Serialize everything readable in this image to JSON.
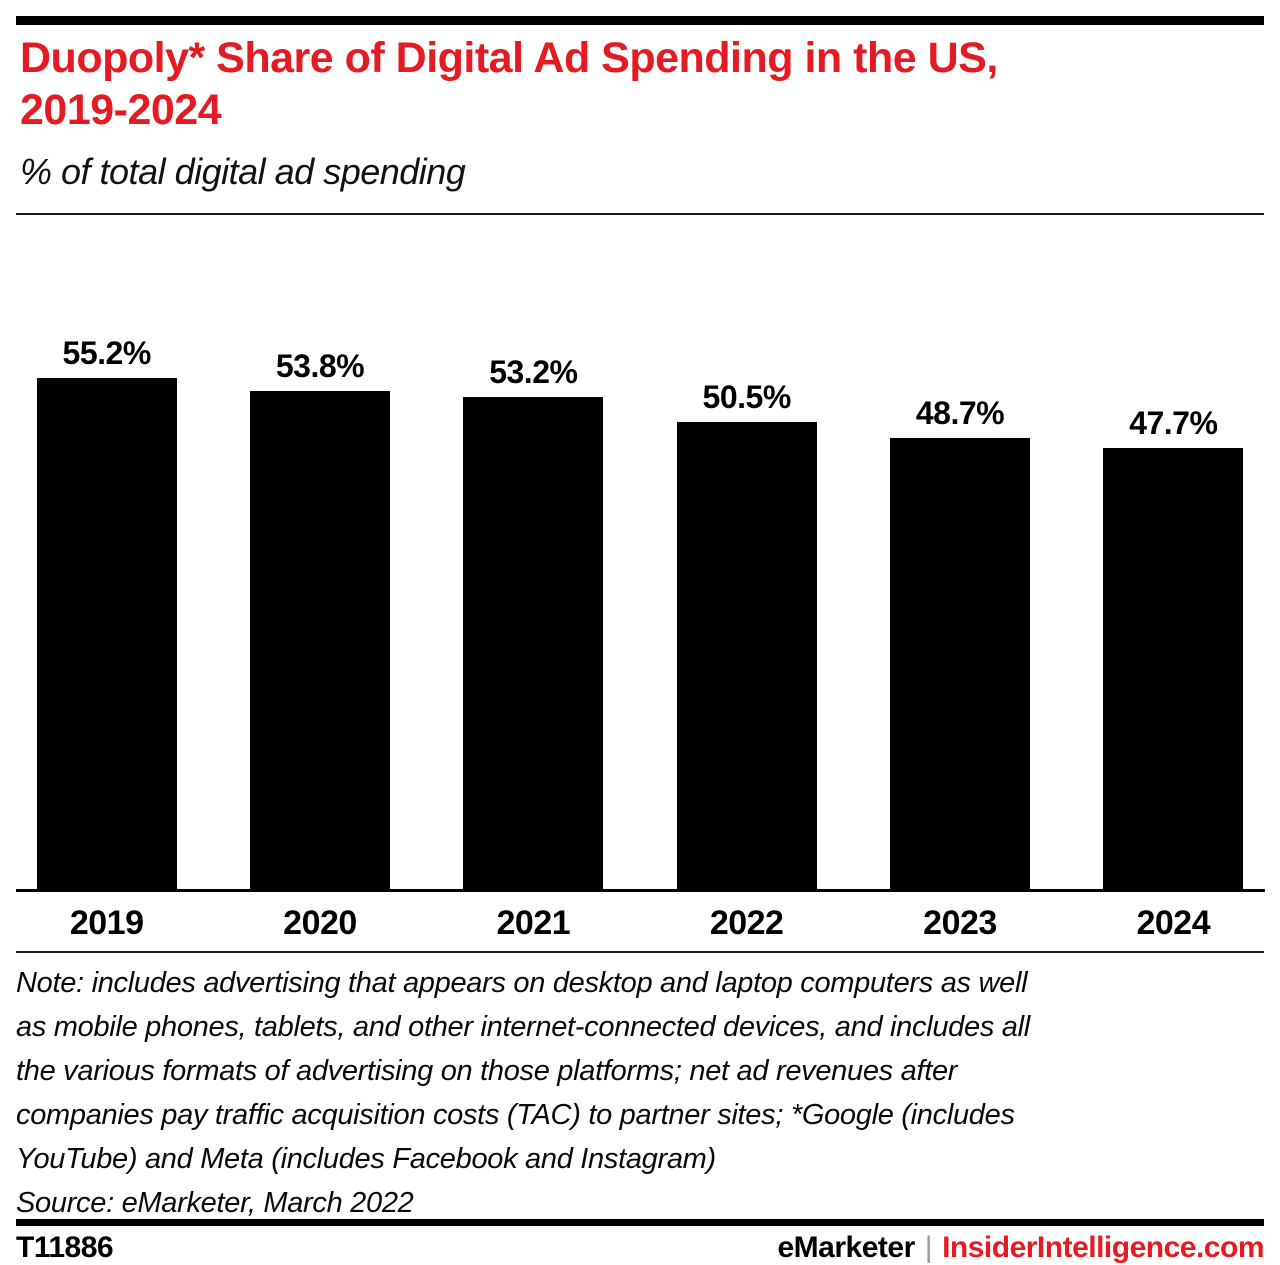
{
  "header": {
    "title": "Duopoly* Share of Digital Ad Spending in the US,\n2019-2024",
    "subtitle": "% of total digital ad spending"
  },
  "chart_data": {
    "type": "bar",
    "categories": [
      "2019",
      "2020",
      "2021",
      "2022",
      "2023",
      "2024"
    ],
    "values": [
      55.2,
      53.8,
      53.2,
      50.5,
      48.7,
      47.7
    ],
    "value_labels": [
      "55.2%",
      "53.8%",
      "53.2%",
      "50.5%",
      "48.7%",
      "47.7%"
    ],
    "title": "Duopoly* Share of Digital Ad Spending in the US, 2019-2024",
    "subtitle": "% of total digital ad spending",
    "xlabel": "",
    "ylabel": "% of total digital ad spending",
    "bar_color": "#000000",
    "grid": false,
    "data_labels_position": "above-bars",
    "y_axis_shown": false
  },
  "note": {
    "text": "Note: includes advertising that appears on desktop and laptop computers as well\nas mobile phones, tablets, and other internet-connected devices, and includes all\nthe various formats of advertising on those platforms; net ad revenues after\ncompanies pay traffic acquisition costs (TAC) to partner sites; *Google (includes\nYouTube) and Meta (includes Facebook and Instagram)\nSource: eMarketer, March 2022"
  },
  "footer": {
    "id": "T11886",
    "brand": "eMarketer",
    "separator": "|",
    "site": "InsiderIntelligence.com"
  },
  "colors": {
    "accent_red": "#e41b23",
    "bar": "#000000",
    "separator_gray": "#9b9b9b"
  }
}
